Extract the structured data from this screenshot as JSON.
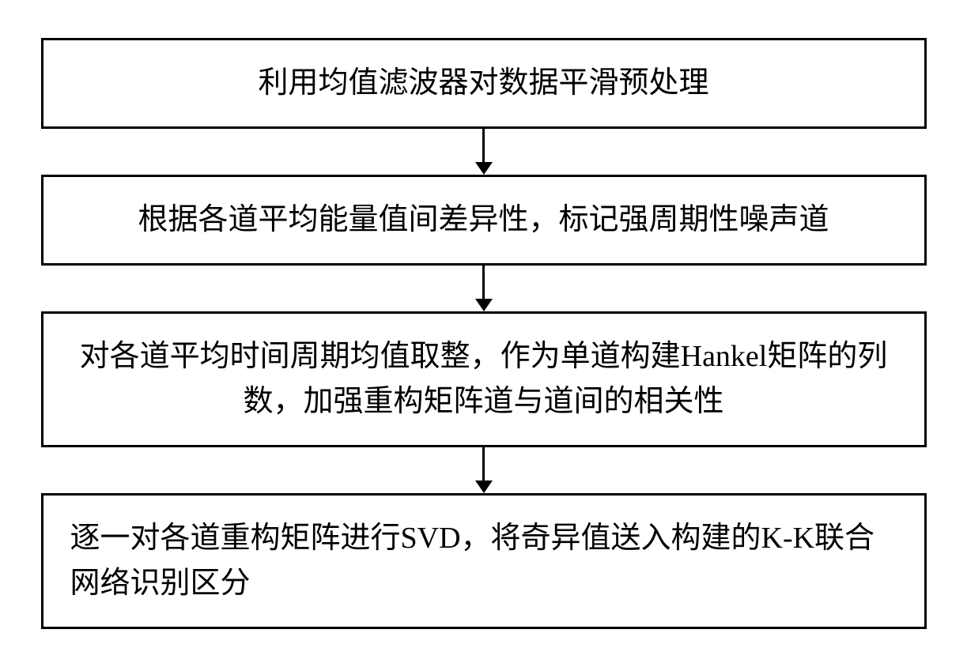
{
  "flowchart": {
    "type": "flowchart",
    "direction": "vertical",
    "background_color": "#ffffff",
    "node_border_color": "#000000",
    "node_border_width": 3,
    "node_fill": "#ffffff",
    "text_color": "#000000",
    "font_family": "SimSun",
    "font_size_pt": 28,
    "arrow_color": "#000000",
    "arrow_line_width": 3,
    "nodes": [
      {
        "id": "n1",
        "label": "利用均值滤波器对数据平滑预处理",
        "align": "center"
      },
      {
        "id": "n2",
        "label": "根据各道平均能量值间差异性，标记强周期性噪声道",
        "align": "center"
      },
      {
        "id": "n3",
        "label": "对各道平均时间周期均值取整，作为单道构建Hankel矩阵的列数，加强重构矩阵道与道间的相关性",
        "align": "center"
      },
      {
        "id": "n4",
        "label": "逐一对各道重构矩阵进行SVD，将奇异值送入构建的K-K联合网络识别区分",
        "align": "left"
      }
    ],
    "edges": [
      {
        "from": "n1",
        "to": "n2"
      },
      {
        "from": "n2",
        "to": "n3"
      },
      {
        "from": "n3",
        "to": "n4"
      }
    ]
  }
}
